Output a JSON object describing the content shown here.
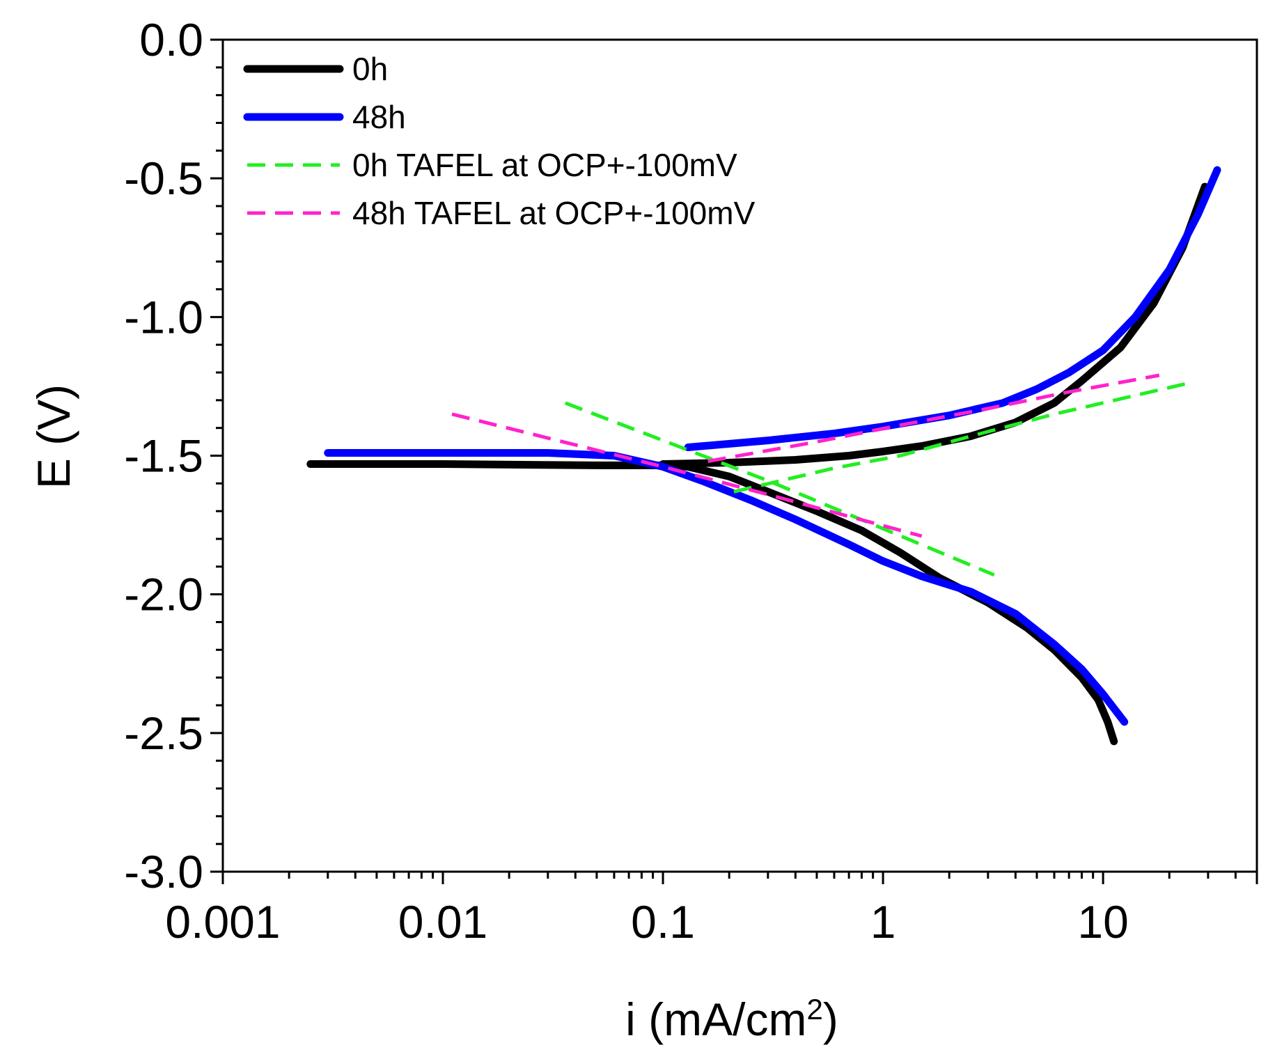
{
  "chart_data": {
    "type": "line",
    "title": "",
    "xlabel": "i (mA/cm",
    "xlabel_sup": "2",
    "xlabel_close": ")",
    "ylabel": "E (V)",
    "xscale": "log",
    "xlim": [
      0.001,
      50
    ],
    "ylim": [
      -3.0,
      0.0
    ],
    "x_ticks": [
      0.001,
      0.01,
      0.1,
      1,
      10
    ],
    "x_tick_labels": [
      "0.001",
      "0.01",
      "0.1",
      "1",
      "10"
    ],
    "y_ticks": [
      0.0,
      -0.5,
      -1.0,
      -1.5,
      -2.0,
      -2.5,
      -3.0
    ],
    "y_tick_labels": [
      "0.0",
      "-0.5",
      "-1.0",
      "-1.5",
      "-2.0",
      "-2.5",
      "-3.0"
    ],
    "legend_position": "top-left",
    "series": [
      {
        "name": "0h",
        "color": "#000000",
        "style": "solid",
        "segments": [
          [
            [
              0.0025,
              -1.53
            ],
            [
              0.01,
              -1.53
            ],
            [
              0.05,
              -1.535
            ],
            [
              0.1,
              -1.535
            ],
            [
              0.13,
              -1.54
            ],
            [
              0.2,
              -1.575
            ],
            [
              0.3,
              -1.63
            ],
            [
              0.5,
              -1.7
            ],
            [
              0.8,
              -1.77
            ],
            [
              1.2,
              -1.85
            ],
            [
              1.8,
              -1.94
            ],
            [
              3,
              -2.03
            ],
            [
              4.5,
              -2.12
            ],
            [
              6,
              -2.2
            ],
            [
              8,
              -2.3
            ],
            [
              9.5,
              -2.38
            ],
            [
              10.5,
              -2.46
            ],
            [
              11.2,
              -2.53
            ]
          ],
          [
            [
              0.1,
              -1.53
            ],
            [
              0.2,
              -1.525
            ],
            [
              0.4,
              -1.515
            ],
            [
              0.7,
              -1.5
            ],
            [
              1,
              -1.485
            ],
            [
              1.5,
              -1.465
            ],
            [
              2.5,
              -1.43
            ],
            [
              4,
              -1.38
            ],
            [
              6,
              -1.31
            ],
            [
              8,
              -1.23
            ],
            [
              12,
              -1.11
            ],
            [
              17,
              -0.95
            ],
            [
              23,
              -0.75
            ],
            [
              29,
              -0.53
            ]
          ]
        ]
      },
      {
        "name": "48h",
        "color": "#0000ff",
        "style": "solid",
        "segments": [
          [
            [
              0.003,
              -1.49
            ],
            [
              0.01,
              -1.49
            ],
            [
              0.03,
              -1.49
            ],
            [
              0.06,
              -1.5
            ],
            [
              0.1,
              -1.54
            ],
            [
              0.15,
              -1.59
            ],
            [
              0.25,
              -1.66
            ],
            [
              0.4,
              -1.73
            ],
            [
              0.7,
              -1.82
            ],
            [
              1,
              -1.88
            ],
            [
              1.5,
              -1.935
            ],
            [
              2.5,
              -1.99
            ],
            [
              4,
              -2.07
            ],
            [
              6,
              -2.18
            ],
            [
              8,
              -2.27
            ],
            [
              10,
              -2.36
            ],
            [
              12.5,
              -2.46
            ]
          ],
          [
            [
              0.13,
              -1.47
            ],
            [
              0.3,
              -1.445
            ],
            [
              0.6,
              -1.42
            ],
            [
              1,
              -1.395
            ],
            [
              2,
              -1.355
            ],
            [
              3.5,
              -1.31
            ],
            [
              5,
              -1.26
            ],
            [
              7,
              -1.2
            ],
            [
              10,
              -1.12
            ],
            [
              14,
              -1.0
            ],
            [
              20,
              -0.83
            ],
            [
              27,
              -0.63
            ],
            [
              33,
              -0.47
            ]
          ]
        ]
      },
      {
        "name": "0h TAFEL at OCP+-100mV",
        "color": "#22ee22",
        "style": "dashed",
        "segments": [
          [
            [
              0.036,
              -1.31
            ],
            [
              0.3,
              -1.59
            ],
            [
              3.2,
              -1.93
            ]
          ],
          [
            [
              0.21,
              -1.63
            ],
            [
              0.6,
              -1.545
            ],
            [
              1.2,
              -1.5
            ],
            [
              2.5,
              -1.43
            ],
            [
              6,
              -1.35
            ],
            [
              24,
              -1.24
            ]
          ]
        ]
      },
      {
        "name": "48h TAFEL at OCP+-100mV",
        "color": "#ff22cc",
        "style": "dashed",
        "segments": [
          [
            [
              0.011,
              -1.35
            ],
            [
              0.1,
              -1.54
            ],
            [
              0.3,
              -1.64
            ],
            [
              1.5,
              -1.79
            ]
          ],
          [
            [
              0.16,
              -1.52
            ],
            [
              0.5,
              -1.45
            ],
            [
              1.2,
              -1.39
            ],
            [
              3,
              -1.33
            ],
            [
              7,
              -1.27
            ],
            [
              18,
              -1.21
            ]
          ]
        ]
      }
    ]
  }
}
